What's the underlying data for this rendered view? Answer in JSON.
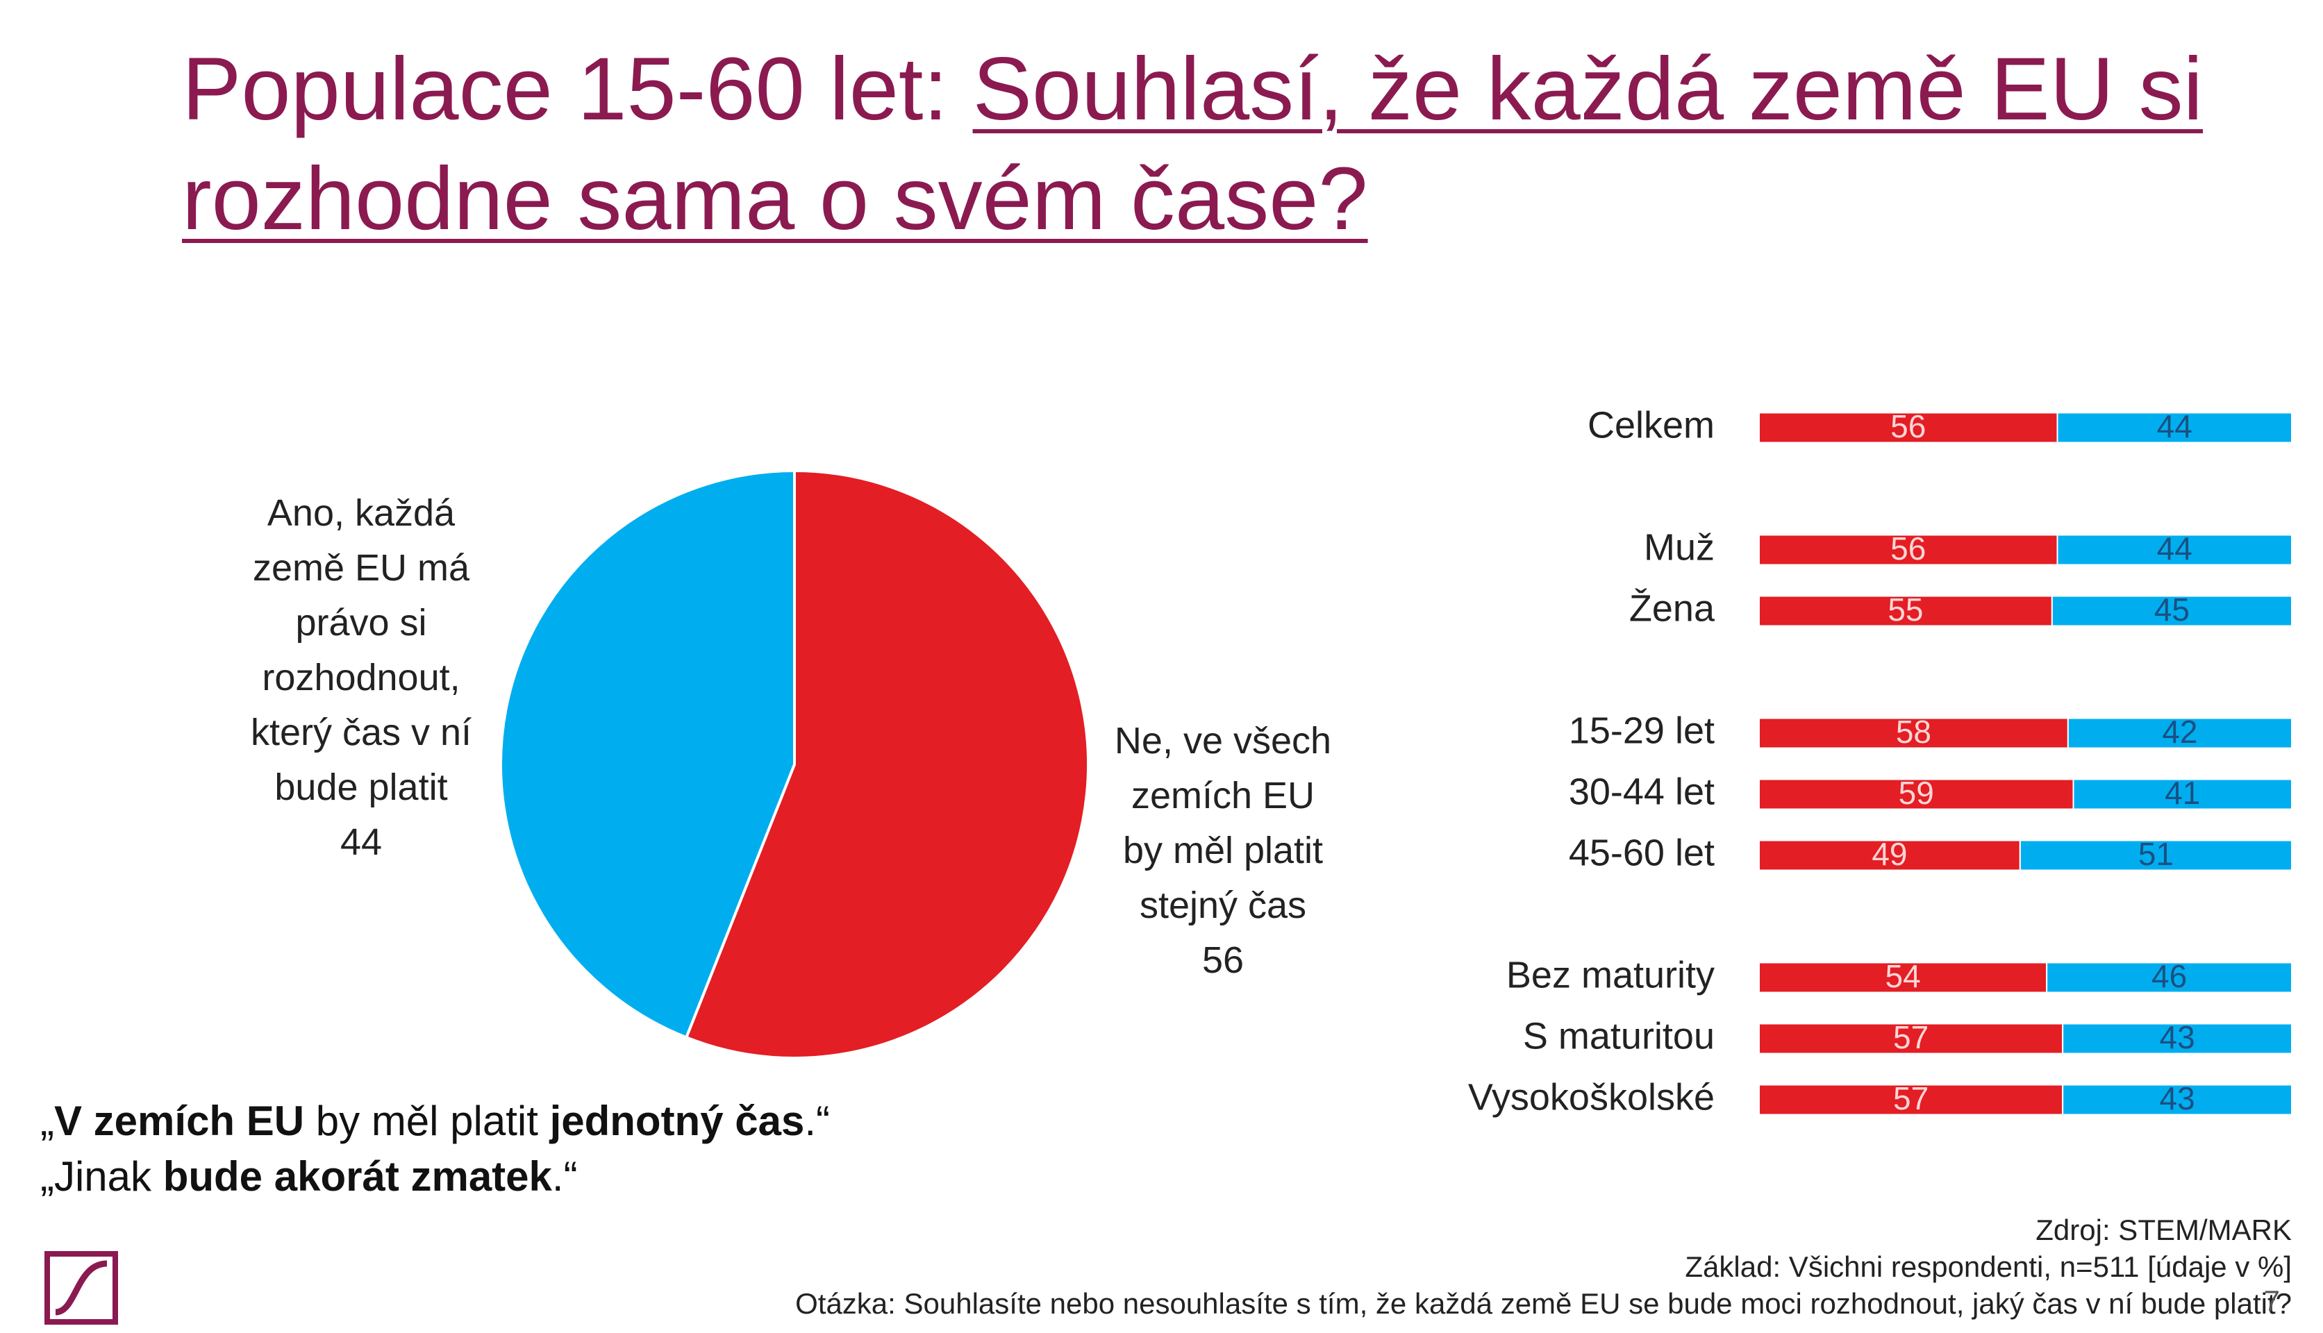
{
  "title": {
    "lead": "Populace 15-60 let: ",
    "question": "Souhlasí, že každá země EU si rozhodne sama o svém čase?"
  },
  "chart_data": [
    {
      "type": "pie",
      "categories": [
        "Ne, ve všech\nzemích EU\nby měl platit\nstejný čas",
        "Ano, každá\nzemě EU má\nprávo si\nrozhodnout,\nkterý čas v ní\nbude platit"
      ],
      "values": [
        56,
        44
      ],
      "colors": [
        "#e31e24",
        "#00aeef"
      ]
    },
    {
      "type": "stacked-bar",
      "categories": [
        "Celkem",
        "Muž",
        "Žena",
        "15-29 let",
        "30-44 let",
        "45-60 let",
        "Bez maturity",
        "S maturitou",
        "Vysokoškolské"
      ],
      "series": [
        {
          "color": "#e31e24",
          "values": [
            56,
            56,
            55,
            58,
            59,
            49,
            54,
            57,
            57
          ]
        },
        {
          "color": "#00aeef",
          "values": [
            44,
            44,
            45,
            42,
            41,
            51,
            46,
            43,
            43
          ]
        }
      ],
      "xlim": [
        0,
        100
      ]
    }
  ],
  "quotes": [
    [
      {
        "text": "„",
        "bold": false
      },
      {
        "text": "V zemích EU",
        "bold": true
      },
      {
        "text": " by měl platit ",
        "bold": false
      },
      {
        "text": "jednotný čas",
        "bold": true
      },
      {
        "text": ".“",
        "bold": false
      }
    ],
    [
      {
        "text": "„Jinak ",
        "bold": false
      },
      {
        "text": "bude akorát zmatek",
        "bold": true
      },
      {
        "text": ".“",
        "bold": false
      }
    ]
  ],
  "source": [
    "Zdroj: STEM/MARK",
    "Základ: Všichni respondenti, n=511 [údaje v %]",
    "Otázka: Souhlasíte nebo nesouhlasíte s tím, že každá země EU se bude moci rozhodnout, jaký čas v ní bude platit?"
  ],
  "page_number": 7
}
